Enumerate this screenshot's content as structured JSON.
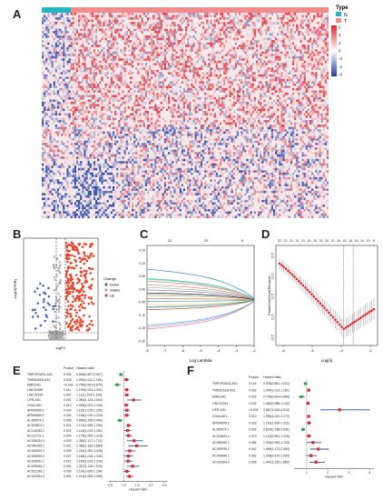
{
  "figure": {
    "panels": {
      "A": "A",
      "B": "B",
      "C": "C",
      "D": "D",
      "E": "E",
      "F": "F"
    }
  },
  "chart_data": [
    {
      "panel": "A",
      "type": "heatmap",
      "legend_title": "Type",
      "legend_entries": [
        {
          "name": "N",
          "color": "#27b3c2"
        },
        {
          "name": "T",
          "color": "#f08c8c"
        }
      ],
      "color_scale": {
        "ticks": [
          6,
          4,
          2,
          0,
          -2,
          -4,
          -6
        ],
        "high": "#e3242b",
        "mid": "#ffffff",
        "low": "#1f3f9e"
      },
      "groups": [
        {
          "name": "N",
          "fraction": 0.1
        },
        {
          "name": "T",
          "fraction": 0.9
        }
      ]
    },
    {
      "panel": "B",
      "type": "scatter",
      "xlabel": "logFC",
      "ylabel": "-log10(FDR)",
      "legend_title": "Change",
      "legend_entries": [
        {
          "name": "Down",
          "color": "#4a6fb5"
        },
        {
          "name": "Stable",
          "color": "#aaaaaa"
        },
        {
          "name": "Up",
          "color": "#e8472d"
        }
      ]
    },
    {
      "panel": "C",
      "type": "line",
      "xlabel": "Log Lambda",
      "ylabel": "Coefficients",
      "top_ticks": [
        "22",
        "20",
        "9"
      ],
      "xlim": [
        -8,
        -2
      ],
      "x_ticks": [
        "-8",
        "-7",
        "-6",
        "-5",
        "-4",
        "-3",
        "-2"
      ],
      "y_ticks": [
        "0.15",
        "0.10",
        "0.05",
        "0.00",
        "-0.05",
        "-0.10",
        "-0.15",
        "-0.20"
      ]
    },
    {
      "panel": "D",
      "type": "line",
      "xlabel": "Log(λ)",
      "ylabel": "Partial Likelihood Deviance",
      "top_ticks": [
        "22",
        "22",
        "21",
        "21",
        "21",
        "20",
        "20",
        "20",
        "20",
        "20",
        "19",
        "18",
        "18",
        "16",
        "14",
        "13",
        "9"
      ],
      "x_ticks": [
        "-8",
        "-6",
        "-4",
        "-2"
      ],
      "y_ticks": [
        "12.5",
        "12.0",
        "11.5",
        "11.0",
        "10.5"
      ],
      "min_log_lambda": -3.2
    },
    {
      "panel": "E",
      "type": "forest",
      "col_pvalue": "Pvalue",
      "col_hr": "Hazard ratio",
      "xlabel": "Hazard ratio",
      "x_ticks": [
        "0.5",
        "1.0",
        "1.5",
        "2.0",
        "2.5"
      ],
      "rows": [
        {
          "gene": "TMPOP2AS1-AS1",
          "p": "0.005",
          "hr": "0.894(0.827-0.967)"
        },
        {
          "gene": "TMEM161B-AS1",
          "p": "0.026",
          "hr": "1.094(1.011-1.185)"
        },
        {
          "gene": "MIR31HG",
          "p": "<0.001",
          "hr": "0.756(0.651-0.879)"
        },
        {
          "gene": "LINC00189",
          "p": "0.011",
          "hr": "1.109(1.024-1.201)"
        },
        {
          "gene": "LINC02154",
          "p": "0.007",
          "hr": "1.111(1.029-1.199)"
        },
        {
          "gene": "LIFR-AS1",
          "p": "0.001",
          "hr": "1.363(1.124-1.654)"
        },
        {
          "gene": "CD44-AS1",
          "p": "0.010",
          "hr": "1.093(1.021-1.169)"
        },
        {
          "gene": "AP000695.1",
          "p": "0.024",
          "hr": "1.115(1.015-1.225)"
        },
        {
          "gene": "AP000695.2",
          "p": "0.030",
          "hr": "1.108(1.010-1.215)"
        },
        {
          "gene": "AL355974.1",
          "p": "0.005",
          "hr": "0.854(0.765-0.954)"
        },
        {
          "gene": "AC023824.1",
          "p": "0.001",
          "hr": "1.174(1.069-1.290)"
        },
        {
          "gene": "AC124283.1",
          "p": "0.022",
          "hr": "1.143(1.019-1.281)"
        },
        {
          "gene": "AC112721.1",
          "p": "0.004",
          "hr": "1.175(1.052-1.313)"
        },
        {
          "gene": "AC005034.3",
          "p": "0.003",
          "hr": "1.383(1.117-1.712)"
        },
        {
          "gene": "AC090159.1",
          "p": "0.001",
          "hr": "1.480(1.162-1.884)"
        },
        {
          "gene": "AC026320.2",
          "p": "0.009",
          "hr": "1.224(1.051-1.426)"
        },
        {
          "gene": "AC009299.2",
          "p": "0.027",
          "hr": "1.168(1.018-1.340)"
        },
        {
          "gene": "AC002091.1",
          "p": "0.021",
          "hr": "1.160(1.023-1.316)"
        },
        {
          "gene": "AC009086.2",
          "p": "0.001",
          "hr": "1.327(1.118-1.575)"
        },
        {
          "gene": "AC022196.1",
          "p": "0.039",
          "hr": "1.114(1.005-1.234)"
        },
        {
          "gene": "AC022394.2",
          "p": "0.001",
          "hr": "1.213(1.083-1.359)"
        }
      ]
    },
    {
      "panel": "F",
      "type": "forest",
      "col_pvalue": "Pvalue",
      "col_hr": "Hazard ratio",
      "xlabel": "Hazard ratio",
      "x_ticks": [
        "1",
        "2",
        "3",
        "4"
      ],
      "rows": [
        {
          "gene": "TMPOP2AS1-AS1",
          "p": "0.144",
          "hr": "0.938(0.861-1.022)"
        },
        {
          "gene": "TMEM161B-AS1",
          "p": "0.022",
          "hr": "1.094(1.013-1.181)"
        },
        {
          "gene": "MIR31HG",
          "p": "0.002",
          "hr": "0.749(0.624-0.899)"
        },
        {
          "gene": "LINC02154",
          "p": "0.102",
          "hr": "1.062(0.988-1.142)"
        },
        {
          "gene": "LIFR-AS1",
          "p": "<0.001",
          "hr": "2.567(1.643-4.010)"
        },
        {
          "gene": "CD44-AS1",
          "p": "0.010",
          "hr": "1.094(1.022-1.172)"
        },
        {
          "gene": "AP000695.2",
          "p": "0.033",
          "hr": "1.110(1.008-1.222)"
        },
        {
          "gene": "AL355974.1",
          "p": "0.002",
          "hr": "0.829(0.738-0.931)"
        },
        {
          "gene": "AC023824.1",
          "p": "0.073",
          "hr": "1.102(0.991-1.226)"
        },
        {
          "gene": "AC090159.1",
          "p": "0.056",
          "hr": "1.300(0.993-1.703)"
        },
        {
          "gene": "AC009299.2",
          "p": "0.002",
          "hr": "1.555(1.173-2.063)"
        },
        {
          "gene": "AC009086.1",
          "p": "0.092",
          "hr": "1.206(0.970-1.500)"
        },
        {
          "gene": "AC022394.2",
          "p": "0.005",
          "hr": "1.447(1.119-1.869)"
        }
      ]
    }
  ]
}
